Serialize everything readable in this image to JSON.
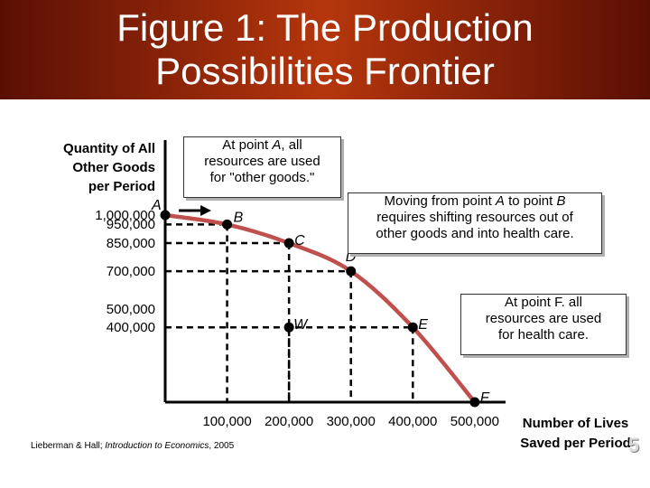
{
  "slide": {
    "title_line1": "Figure 1:  The Production",
    "title_line2": "Possibilities Frontier",
    "footer_author": "Lieberman & Hall; ",
    "footer_book": "Introduction to Economics",
    "footer_year": ", 2005",
    "page_number": "5",
    "title_gradient": [
      "#5a0f04",
      "#b5360c"
    ]
  },
  "callouts": {
    "point_a_line1": "At point ",
    "point_a_letter": "A",
    "point_a_line1_end": ", all",
    "point_a_line2": "resources are used",
    "point_a_line3": "for \"other goods.\"",
    "a_to_b_line1_start": "Moving from point ",
    "a_to_b_a": "A",
    "a_to_b_line1_mid": " to point ",
    "a_to_b_b": "B",
    "a_to_b_line2": "requires shifting resources out of",
    "a_to_b_line3": "other goods and into health care.",
    "point_f_line1": "At point F. all",
    "point_f_line2": "resources are used",
    "point_f_line3": "for health care."
  },
  "chart_data": {
    "type": "line",
    "ylabel_lines": [
      "Quantity of All",
      "Other Goods",
      "per Period"
    ],
    "xlabel_lines": [
      "Number of Lives",
      "Saved per Period"
    ],
    "y_tick_labels": [
      "1,000,000",
      "950,000",
      "850,000",
      "700,000",
      "500,000",
      "400,000"
    ],
    "y_tick_values": [
      1000000,
      950000,
      850000,
      700000,
      500000,
      400000
    ],
    "x_tick_labels": [
      "100,000",
      "200,000",
      "300,000",
      "400,000",
      "500,000"
    ],
    "x_tick_values": [
      100000,
      200000,
      300000,
      400000,
      500000
    ],
    "xlim": [
      0,
      550000
    ],
    "ylim": [
      0,
      1050000
    ],
    "curve_color": "#c0504d",
    "point_color": "#000000",
    "points": [
      {
        "label": "A",
        "x": 0,
        "y": 1000000
      },
      {
        "label": "B",
        "x": 100000,
        "y": 950000
      },
      {
        "label": "C",
        "x": 200000,
        "y": 850000
      },
      {
        "label": "D",
        "x": 300000,
        "y": 700000
      },
      {
        "label": "E",
        "x": 400000,
        "y": 400000
      },
      {
        "label": "F",
        "x": 500000,
        "y": 0
      },
      {
        "label": "W",
        "x": 200000,
        "y": 400000
      }
    ],
    "frontier": [
      "A",
      "B",
      "C",
      "D",
      "E",
      "F"
    ]
  }
}
